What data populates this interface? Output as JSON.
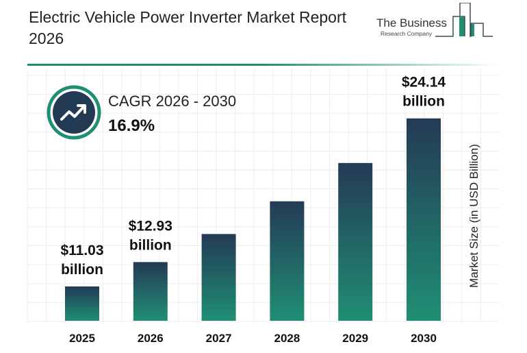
{
  "title": "Electric Vehicle Power Inverter Market Report 2026",
  "logo": {
    "line1": "The Business",
    "line2": "Research Company"
  },
  "cagr": {
    "label": "CAGR 2026 - 2030",
    "value": "16.9%",
    "icon": "trending-up-icon"
  },
  "colors": {
    "bar_top": "#243a55",
    "bar_bottom": "#1f8f74",
    "accent": "#1f8f74",
    "icon_bg": "#233a55"
  },
  "chart_data": {
    "type": "bar",
    "title": "Electric Vehicle Power Inverter Market Report 2026",
    "categories": [
      "2025",
      "2026",
      "2027",
      "2028",
      "2029",
      "2030"
    ],
    "values": [
      11.03,
      12.93,
      15.12,
      17.67,
      20.66,
      24.14
    ],
    "data_labels": [
      {
        "category": "2025",
        "line1": "$11.03",
        "line2": "billion"
      },
      {
        "category": "2026",
        "line1": "$12.93",
        "line2": "billion"
      },
      {
        "category": "2030",
        "line1": "$24.14",
        "line2": "billion"
      }
    ],
    "xlabel": "",
    "ylabel": "Market Size (in USD Billion)",
    "grid": true,
    "legend": "none"
  }
}
